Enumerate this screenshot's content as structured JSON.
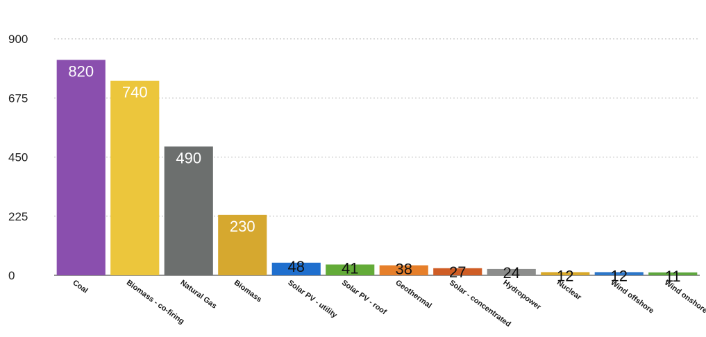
{
  "chart_data": {
    "type": "bar",
    "title": "",
    "xlabel": "",
    "ylabel": "",
    "ylim": [
      0,
      900
    ],
    "yticks": [
      0,
      225,
      450,
      675,
      900
    ],
    "grid": true,
    "categories": [
      "Coal",
      "Biomass - co-firing",
      "Natural Gas",
      "Biomass",
      "Solar PV - utility",
      "Solar PV - roof",
      "Geothermal",
      "Solar - concentrated",
      "Hydropower",
      "Nuclear",
      "Wind offshore",
      "Wind onshore"
    ],
    "values": [
      820,
      740,
      490,
      230,
      48,
      41,
      38,
      27,
      24,
      12,
      12,
      11
    ],
    "data_labels": [
      "820",
      "740",
      "490",
      "230",
      "48",
      "41",
      "38",
      "27",
      "24",
      "12",
      "12",
      "11"
    ],
    "colors": [
      "#8a4fae",
      "#ecc63c",
      "#6c6f6e",
      "#d6a82f",
      "#1f6fce",
      "#63ab38",
      "#e67f2a",
      "#cf5d25",
      "#8c8d8c",
      "#d8a82a",
      "#2c76c8",
      "#5ea63e"
    ],
    "label_colors": [
      "#ffffff",
      "#ffffff",
      "#ffffff",
      "#ffffff",
      "#111111",
      "#111111",
      "#111111",
      "#111111",
      "#111111",
      "#111111",
      "#111111",
      "#111111"
    ]
  }
}
